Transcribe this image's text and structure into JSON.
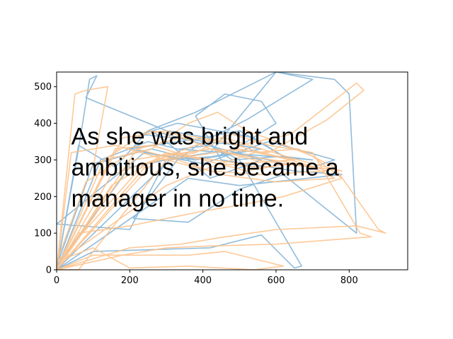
{
  "chart_data": {
    "type": "line",
    "xlim": [
      0,
      960
    ],
    "ylim": [
      0,
      540
    ],
    "x_ticks": [
      0,
      200,
      400,
      600,
      800
    ],
    "y_ticks": [
      0,
      100,
      200,
      300,
      400,
      500
    ],
    "grid": false,
    "annotation": {
      "lines": [
        "As she was bright and",
        "ambitious, she became a",
        "manager in no time."
      ],
      "anchor_x": 40,
      "anchor_y": 365
    },
    "series": [
      {
        "color": "#7eb0d5",
        "points": [
          [
            0,
            0
          ],
          [
            60,
            330
          ],
          [
            90,
            520
          ],
          [
            110,
            530
          ],
          [
            80,
            470
          ],
          [
            300,
            380
          ],
          [
            420,
            360
          ],
          [
            520,
            410
          ],
          [
            700,
            520
          ],
          [
            600,
            540
          ],
          [
            420,
            320
          ],
          [
            300,
            300
          ],
          [
            200,
            280
          ],
          [
            0,
            10
          ],
          [
            100,
            290
          ],
          [
            260,
            330
          ],
          [
            380,
            300
          ],
          [
            480,
            320
          ],
          [
            560,
            300
          ],
          [
            420,
            250
          ],
          [
            300,
            350
          ],
          [
            260,
            380
          ],
          [
            450,
            330
          ],
          [
            620,
            290
          ],
          [
            700,
            280
          ],
          [
            760,
            300
          ],
          [
            580,
            350
          ],
          [
            400,
            290
          ],
          [
            240,
            320
          ],
          [
            0,
            125
          ],
          [
            200,
            110
          ],
          [
            300,
            300
          ],
          [
            440,
            310
          ],
          [
            520,
            350
          ],
          [
            600,
            400
          ],
          [
            560,
            460
          ],
          [
            460,
            480
          ],
          [
            380,
            420
          ],
          [
            450,
            300
          ],
          [
            650,
            270
          ],
          [
            780,
            260
          ],
          [
            500,
            230
          ],
          [
            360,
            250
          ],
          [
            260,
            180
          ],
          [
            0,
            0
          ],
          [
            100,
            50
          ],
          [
            420,
            60
          ],
          [
            560,
            95
          ],
          [
            650,
            5
          ],
          [
            670,
            10
          ],
          [
            500,
            300
          ],
          [
            400,
            350
          ],
          [
            330,
            300
          ],
          [
            210,
            140
          ],
          [
            360,
            130
          ],
          [
            500,
            220
          ],
          [
            620,
            260
          ],
          [
            820,
            100
          ],
          [
            800,
            480
          ],
          [
            760,
            520
          ],
          [
            600,
            540
          ],
          [
            380,
            430
          ],
          [
            250,
            380
          ],
          [
            160,
            280
          ],
          [
            60,
            340
          ],
          [
            0,
            0
          ],
          [
            40,
            40
          ],
          [
            340,
            330
          ],
          [
            420,
            340
          ],
          [
            480,
            300
          ],
          [
            620,
            310
          ],
          [
            540,
            360
          ],
          [
            440,
            380
          ],
          [
            330,
            400
          ],
          [
            230,
            370
          ],
          [
            500,
            340
          ],
          [
            560,
            330
          ],
          [
            380,
            300
          ],
          [
            300,
            310
          ],
          [
            200,
            330
          ],
          [
            400,
            360
          ],
          [
            500,
            380
          ],
          [
            620,
            310
          ],
          [
            700,
            300
          ],
          [
            460,
            320
          ],
          [
            330,
            330
          ],
          [
            250,
            350
          ],
          [
            120,
            300
          ],
          [
            0,
            0
          ]
        ]
      },
      {
        "color": "#fdbf86",
        "points": [
          [
            0,
            0
          ],
          [
            50,
            480
          ],
          [
            80,
            490
          ],
          [
            140,
            500
          ],
          [
            100,
            280
          ],
          [
            250,
            380
          ],
          [
            400,
            360
          ],
          [
            500,
            340
          ],
          [
            640,
            370
          ],
          [
            820,
            510
          ],
          [
            840,
            490
          ],
          [
            740,
            410
          ],
          [
            580,
            320
          ],
          [
            420,
            330
          ],
          [
            280,
            310
          ],
          [
            0,
            0
          ],
          [
            180,
            360
          ],
          [
            300,
            380
          ],
          [
            420,
            330
          ],
          [
            540,
            300
          ],
          [
            700,
            280
          ],
          [
            760,
            250
          ],
          [
            600,
            240
          ],
          [
            450,
            260
          ],
          [
            330,
            300
          ],
          [
            220,
            330
          ],
          [
            80,
            240
          ],
          [
            0,
            20
          ],
          [
            240,
            290
          ],
          [
            380,
            320
          ],
          [
            460,
            360
          ],
          [
            560,
            330
          ],
          [
            660,
            300
          ],
          [
            780,
            270
          ],
          [
            640,
            290
          ],
          [
            520,
            270
          ],
          [
            400,
            300
          ],
          [
            300,
            320
          ],
          [
            150,
            230
          ],
          [
            0,
            0
          ],
          [
            100,
            40
          ],
          [
            360,
            40
          ],
          [
            460,
            50
          ],
          [
            620,
            10
          ],
          [
            540,
            0
          ],
          [
            360,
            10
          ],
          [
            200,
            5
          ],
          [
            100,
            60
          ],
          [
            20,
            30
          ],
          [
            300,
            230
          ],
          [
            420,
            280
          ],
          [
            540,
            320
          ],
          [
            660,
            330
          ],
          [
            760,
            280
          ],
          [
            880,
            110
          ],
          [
            900,
            100
          ],
          [
            820,
            120
          ],
          [
            600,
            110
          ],
          [
            460,
            90
          ],
          [
            340,
            70
          ],
          [
            200,
            60
          ],
          [
            0,
            0
          ],
          [
            130,
            300
          ],
          [
            260,
            330
          ],
          [
            360,
            400
          ],
          [
            440,
            430
          ],
          [
            520,
            380
          ],
          [
            600,
            350
          ],
          [
            700,
            310
          ],
          [
            780,
            250
          ],
          [
            620,
            200
          ],
          [
            520,
            180
          ],
          [
            400,
            160
          ],
          [
            300,
            140
          ],
          [
            200,
            120
          ],
          [
            60,
            100
          ],
          [
            0,
            0
          ],
          [
            60,
            0
          ],
          [
            300,
            300
          ],
          [
            500,
            330
          ],
          [
            640,
            300
          ],
          [
            740,
            270
          ],
          [
            560,
            260
          ],
          [
            420,
            270
          ],
          [
            300,
            300
          ],
          [
            160,
            340
          ],
          [
            40,
            320
          ],
          [
            0,
            0
          ],
          [
            250,
            290
          ],
          [
            380,
            340
          ],
          [
            480,
            370
          ],
          [
            580,
            340
          ],
          [
            700,
            320
          ],
          [
            830,
            100
          ],
          [
            860,
            90
          ],
          [
            600,
            70
          ],
          [
            420,
            65
          ],
          [
            300,
            60
          ],
          [
            180,
            40
          ],
          [
            0,
            0
          ],
          [
            150,
            260
          ],
          [
            300,
            310
          ],
          [
            420,
            330
          ],
          [
            520,
            310
          ],
          [
            660,
            290
          ],
          [
            560,
            280
          ],
          [
            440,
            290
          ],
          [
            330,
            320
          ],
          [
            210,
            300
          ],
          [
            0,
            0
          ],
          [
            220,
            330
          ],
          [
            340,
            360
          ],
          [
            460,
            350
          ],
          [
            560,
            320
          ],
          [
            650,
            300
          ],
          [
            500,
            290
          ],
          [
            360,
            310
          ],
          [
            260,
            340
          ],
          [
            160,
            330
          ],
          [
            0,
            0
          ]
        ]
      }
    ]
  }
}
